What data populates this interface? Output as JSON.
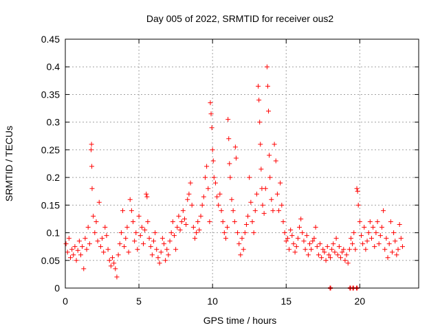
{
  "chart_data": {
    "type": "scatter",
    "title": "Day 005 of 2022, SRMTID for receiver ous2",
    "xlabel": "GPS time / hours",
    "ylabel": "SRMTID / TECUs",
    "xlim": [
      0,
      24
    ],
    "ylim": [
      0,
      0.45
    ],
    "x_ticks": [
      0,
      5,
      10,
      15,
      20
    ],
    "x_tick_labels": [
      "0",
      "5",
      "10",
      "15",
      "20"
    ],
    "y_ticks": [
      0,
      0.05,
      0.1,
      0.15,
      0.2,
      0.25,
      0.3,
      0.35,
      0.4,
      0.45
    ],
    "y_tick_labels": [
      "0",
      "0.05",
      "0.1",
      "0.15",
      "0.2",
      "0.25",
      "0.3",
      "0.35",
      "0.4",
      "0.45"
    ],
    "grid": true,
    "color": "#ff0000",
    "marker": "+",
    "series": [
      {
        "name": "SRMTID",
        "points": [
          [
            0.05,
            0.08
          ],
          [
            0.15,
            0.065
          ],
          [
            0.25,
            0.09
          ],
          [
            0.35,
            0.055
          ],
          [
            0.45,
            0.07
          ],
          [
            0.55,
            0.06
          ],
          [
            0.65,
            0.075
          ],
          [
            0.75,
            0.05
          ],
          [
            0.85,
            0.068
          ],
          [
            0.95,
            0.085
          ],
          [
            1.05,
            0.06
          ],
          [
            1.15,
            0.075
          ],
          [
            1.25,
            0.035
          ],
          [
            1.35,
            0.09
          ],
          [
            1.45,
            0.07
          ],
          [
            1.55,
            0.11
          ],
          [
            1.65,
            0.08
          ],
          [
            1.75,
            0.25
          ],
          [
            1.78,
            0.26
          ],
          [
            1.8,
            0.22
          ],
          [
            1.82,
            0.18
          ],
          [
            1.9,
            0.13
          ],
          [
            2.0,
            0.1
          ],
          [
            2.1,
            0.12
          ],
          [
            2.2,
            0.085
          ],
          [
            2.3,
            0.155
          ],
          [
            2.4,
            0.075
          ],
          [
            2.5,
            0.09
          ],
          [
            2.6,
            0.065
          ],
          [
            2.7,
            0.11
          ],
          [
            2.8,
            0.095
          ],
          [
            2.9,
            0.07
          ],
          [
            3.0,
            0.05
          ],
          [
            3.1,
            0.04
          ],
          [
            3.2,
            0.055
          ],
          [
            3.3,
            0.045
          ],
          [
            3.4,
            0.035
          ],
          [
            3.5,
            0.02
          ],
          [
            3.6,
            0.06
          ],
          [
            3.7,
            0.08
          ],
          [
            3.8,
            0.1
          ],
          [
            3.9,
            0.14
          ],
          [
            4.0,
            0.075
          ],
          [
            4.1,
            0.09
          ],
          [
            4.2,
            0.11
          ],
          [
            4.3,
            0.065
          ],
          [
            4.4,
            0.16
          ],
          [
            4.5,
            0.14
          ],
          [
            4.6,
            0.12
          ],
          [
            4.7,
            0.085
          ],
          [
            4.8,
            0.1
          ],
          [
            4.9,
            0.07
          ],
          [
            5.0,
            0.13
          ],
          [
            5.1,
            0.095
          ],
          [
            5.2,
            0.11
          ],
          [
            5.3,
            0.08
          ],
          [
            5.4,
            0.105
          ],
          [
            5.5,
            0.17
          ],
          [
            5.55,
            0.165
          ],
          [
            5.6,
            0.12
          ],
          [
            5.7,
            0.09
          ],
          [
            5.8,
            0.075
          ],
          [
            5.9,
            0.06
          ],
          [
            6.0,
            0.085
          ],
          [
            6.1,
            0.1
          ],
          [
            6.2,
            0.07
          ],
          [
            6.3,
            0.055
          ],
          [
            6.4,
            0.045
          ],
          [
            6.5,
            0.065
          ],
          [
            6.6,
            0.09
          ],
          [
            6.7,
            0.08
          ],
          [
            6.8,
            0.05
          ],
          [
            6.9,
            0.07
          ],
          [
            7.0,
            0.06
          ],
          [
            7.1,
            0.085
          ],
          [
            7.2,
            0.1
          ],
          [
            7.3,
            0.12
          ],
          [
            7.4,
            0.095
          ],
          [
            7.5,
            0.07
          ],
          [
            7.6,
            0.11
          ],
          [
            7.7,
            0.13
          ],
          [
            7.8,
            0.105
          ],
          [
            7.9,
            0.12
          ],
          [
            8.0,
            0.14
          ],
          [
            8.1,
            0.125
          ],
          [
            8.2,
            0.115
          ],
          [
            8.3,
            0.16
          ],
          [
            8.4,
            0.17
          ],
          [
            8.5,
            0.19
          ],
          [
            8.6,
            0.15
          ],
          [
            8.7,
            0.11
          ],
          [
            8.8,
            0.09
          ],
          [
            8.9,
            0.1
          ],
          [
            9.0,
            0.12
          ],
          [
            9.1,
            0.105
          ],
          [
            9.2,
            0.13
          ],
          [
            9.3,
            0.15
          ],
          [
            9.4,
            0.165
          ],
          [
            9.5,
            0.2
          ],
          [
            9.6,
            0.22
          ],
          [
            9.7,
            0.18
          ],
          [
            9.8,
            0.12
          ],
          [
            9.85,
            0.335
          ],
          [
            9.9,
            0.315
          ],
          [
            9.95,
            0.29
          ],
          [
            10.0,
            0.25
          ],
          [
            10.05,
            0.23
          ],
          [
            10.1,
            0.2
          ],
          [
            10.2,
            0.19
          ],
          [
            10.3,
            0.165
          ],
          [
            10.4,
            0.15
          ],
          [
            10.5,
            0.17
          ],
          [
            10.6,
            0.14
          ],
          [
            10.7,
            0.12
          ],
          [
            10.8,
            0.1
          ],
          [
            10.9,
            0.09
          ],
          [
            11.0,
            0.11
          ],
          [
            11.05,
            0.305
          ],
          [
            11.1,
            0.27
          ],
          [
            11.15,
            0.225
          ],
          [
            11.2,
            0.2
          ],
          [
            11.3,
            0.16
          ],
          [
            11.4,
            0.14
          ],
          [
            11.5,
            0.12
          ],
          [
            11.55,
            0.255
          ],
          [
            11.6,
            0.235
          ],
          [
            11.7,
            0.1
          ],
          [
            11.8,
            0.08
          ],
          [
            11.9,
            0.06
          ],
          [
            12.0,
            0.09
          ],
          [
            12.1,
            0.07
          ],
          [
            12.2,
            0.1
          ],
          [
            12.3,
            0.115
          ],
          [
            12.4,
            0.13
          ],
          [
            12.5,
            0.2
          ],
          [
            12.6,
            0.155
          ],
          [
            12.7,
            0.12
          ],
          [
            12.8,
            0.1
          ],
          [
            12.9,
            0.14
          ],
          [
            13.0,
            0.17
          ],
          [
            13.1,
            0.365
          ],
          [
            13.15,
            0.34
          ],
          [
            13.2,
            0.3
          ],
          [
            13.25,
            0.26
          ],
          [
            13.3,
            0.215
          ],
          [
            13.35,
            0.18
          ],
          [
            13.4,
            0.15
          ],
          [
            13.5,
            0.135
          ],
          [
            13.6,
            0.18
          ],
          [
            13.7,
            0.4
          ],
          [
            13.75,
            0.365
          ],
          [
            13.8,
            0.32
          ],
          [
            13.85,
            0.24
          ],
          [
            13.9,
            0.2
          ],
          [
            14.0,
            0.16
          ],
          [
            14.1,
            0.14
          ],
          [
            14.2,
            0.26
          ],
          [
            14.3,
            0.23
          ],
          [
            14.4,
            0.17
          ],
          [
            14.5,
            0.14
          ],
          [
            14.6,
            0.19
          ],
          [
            14.7,
            0.15
          ],
          [
            14.8,
            0.12
          ],
          [
            14.9,
            0.1
          ],
          [
            15.0,
            0.085
          ],
          [
            15.1,
            0.09
          ],
          [
            15.2,
            0.07
          ],
          [
            15.3,
            0.105
          ],
          [
            15.4,
            0.095
          ],
          [
            15.5,
            0.08
          ],
          [
            15.6,
            0.065
          ],
          [
            15.7,
            0.075
          ],
          [
            15.8,
            0.09
          ],
          [
            15.9,
            0.11
          ],
          [
            16.0,
            0.125
          ],
          [
            16.1,
            0.1
          ],
          [
            16.2,
            0.085
          ],
          [
            16.3,
            0.07
          ],
          [
            16.4,
            0.095
          ],
          [
            16.5,
            0.06
          ],
          [
            16.6,
            0.08
          ],
          [
            16.7,
            0.07
          ],
          [
            16.8,
            0.085
          ],
          [
            16.9,
            0.09
          ],
          [
            17.0,
            0.11
          ],
          [
            17.1,
            0.075
          ],
          [
            17.2,
            0.06
          ],
          [
            17.3,
            0.08
          ],
          [
            17.4,
            0.055
          ],
          [
            17.5,
            0.07
          ],
          [
            17.6,
            0.065
          ],
          [
            17.7,
            0.05
          ],
          [
            17.8,
            0.075
          ],
          [
            17.9,
            0.06
          ],
          [
            18.0,
            0.055
          ],
          [
            18.1,
            0.07
          ],
          [
            18.2,
            0.08
          ],
          [
            18.3,
            0.065
          ],
          [
            18.4,
            0.09
          ],
          [
            18.5,
            0.06
          ],
          [
            18.6,
            0.075
          ],
          [
            18.7,
            0.055
          ],
          [
            18.8,
            0.065
          ],
          [
            18.9,
            0.07
          ],
          [
            19.0,
            0.05
          ],
          [
            19.1,
            0.06
          ],
          [
            19.2,
            0.045
          ],
          [
            19.3,
            0.07
          ],
          [
            19.4,
            0.09
          ],
          [
            19.5,
            0.08
          ],
          [
            19.6,
            0.1
          ],
          [
            19.7,
            0.07
          ],
          [
            19.8,
            0.18
          ],
          [
            19.85,
            0.175
          ],
          [
            19.9,
            0.15
          ],
          [
            20.0,
            0.12
          ],
          [
            20.1,
            0.095
          ],
          [
            20.2,
            0.08
          ],
          [
            20.3,
            0.11
          ],
          [
            20.4,
            0.07
          ],
          [
            20.5,
            0.085
          ],
          [
            20.6,
            0.1
          ],
          [
            20.7,
            0.12
          ],
          [
            20.8,
            0.09
          ],
          [
            20.9,
            0.11
          ],
          [
            21.0,
            0.075
          ],
          [
            21.1,
            0.1
          ],
          [
            21.2,
            0.12
          ],
          [
            21.3,
            0.08
          ],
          [
            21.4,
            0.095
          ],
          [
            21.5,
            0.11
          ],
          [
            21.6,
            0.14
          ],
          [
            21.7,
            0.07
          ],
          [
            21.8,
            0.09
          ],
          [
            21.9,
            0.055
          ],
          [
            22.0,
            0.08
          ],
          [
            22.1,
            0.12
          ],
          [
            22.2,
            0.065
          ],
          [
            22.3,
            0.1
          ],
          [
            22.4,
            0.085
          ],
          [
            22.5,
            0.06
          ],
          [
            22.6,
            0.07
          ],
          [
            22.7,
            0.115
          ],
          [
            22.8,
            0.09
          ],
          [
            22.9,
            0.075
          ]
        ],
        "zero_points": [
          18.0,
          19.35,
          19.55,
          19.8
        ]
      }
    ]
  }
}
